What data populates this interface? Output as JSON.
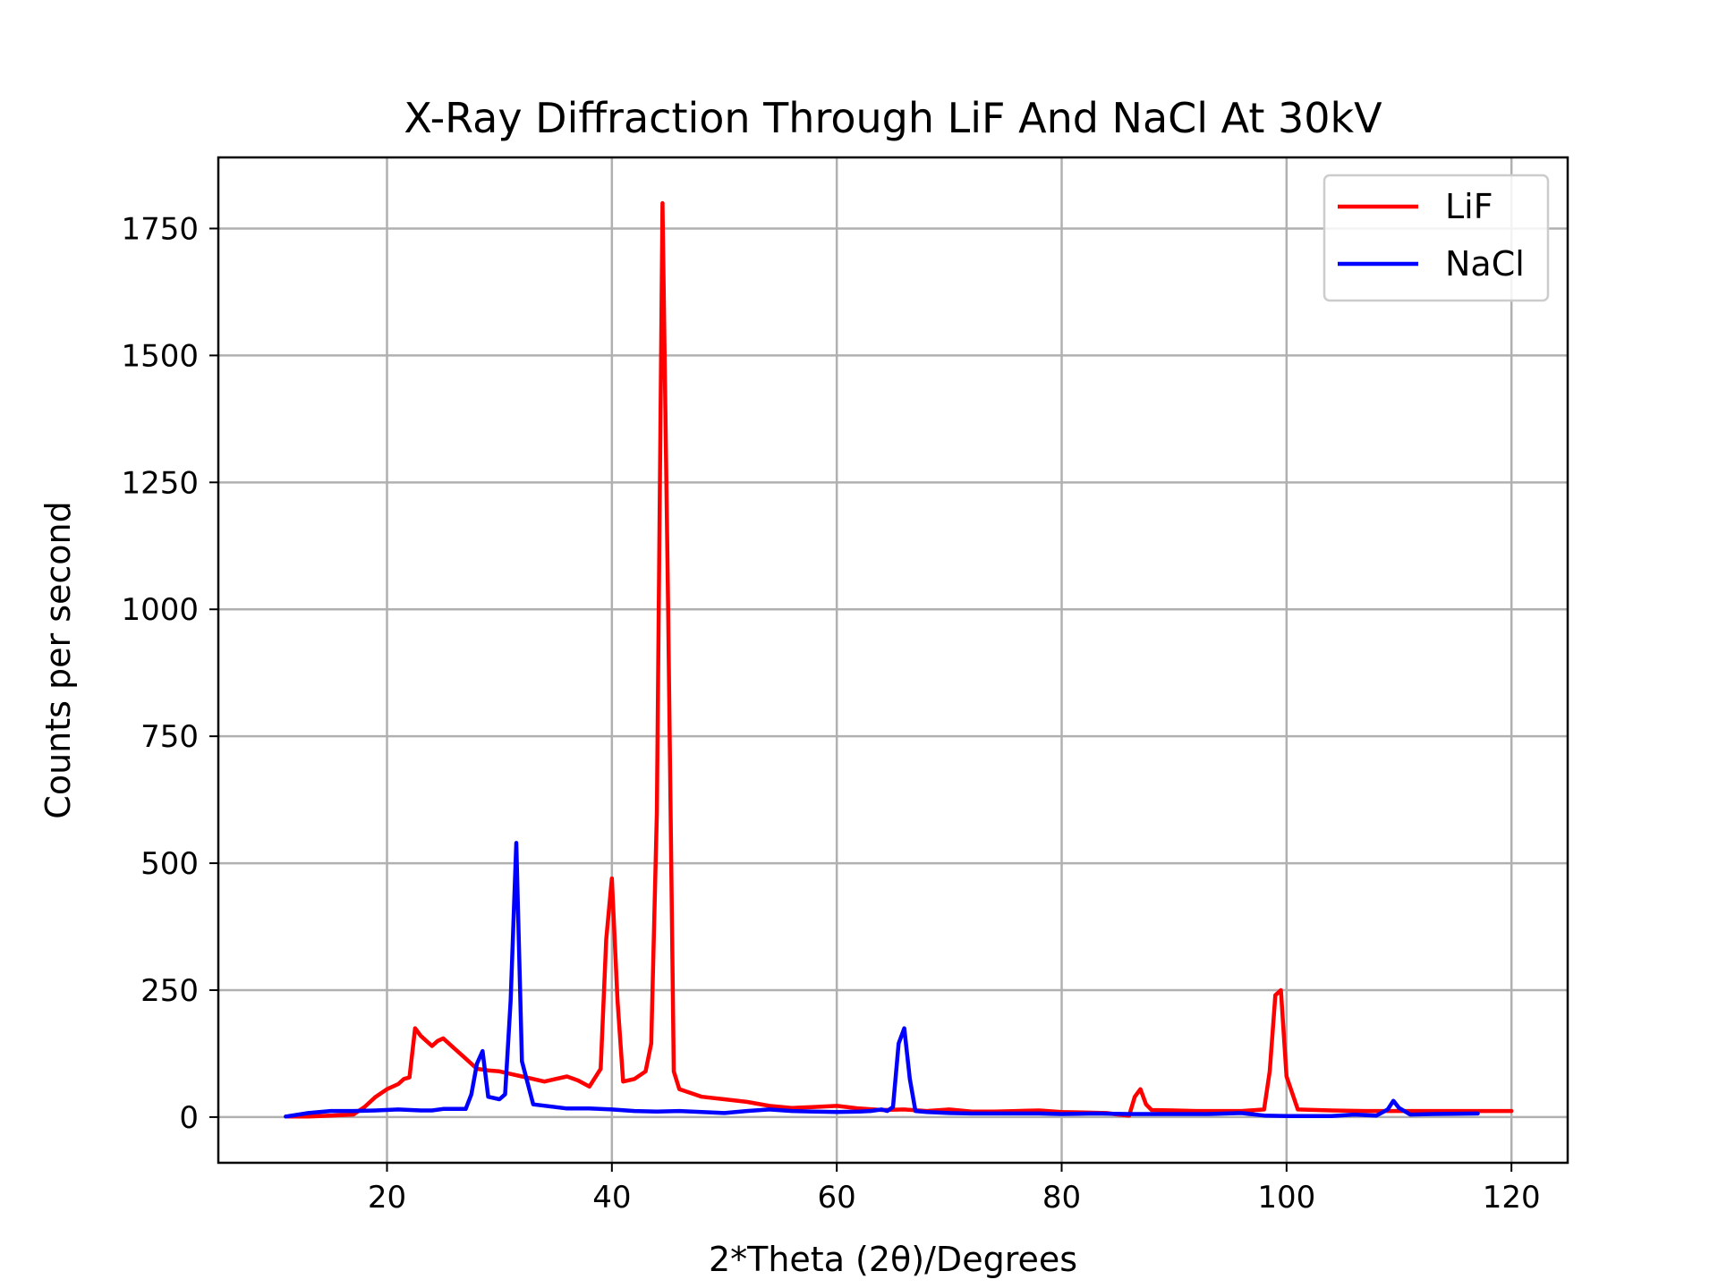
{
  "chart_data": {
    "type": "line",
    "title": "X-Ray Diffraction Through LiF And NaCl At 30kV",
    "xlabel": "2*Theta (2θ)/Degrees",
    "ylabel": "Counts per second",
    "xlim": [
      5,
      125
    ],
    "ylim": [
      -90,
      1890
    ],
    "xticks": [
      20,
      40,
      60,
      80,
      100,
      120
    ],
    "yticks": [
      0,
      250,
      500,
      750,
      1000,
      1250,
      1500,
      1750
    ],
    "grid": true,
    "legend_position": "top-right",
    "series": [
      {
        "name": "LiF",
        "color": "#ff0000",
        "x": [
          11,
          13,
          15,
          17,
          18,
          19,
          20,
          21,
          21.5,
          22,
          22.5,
          23,
          23.5,
          24,
          24.5,
          25,
          25.5,
          26,
          27,
          28,
          29,
          30,
          31,
          32,
          33,
          34,
          35,
          36,
          37,
          38,
          39,
          39.5,
          40,
          40.5,
          41,
          42,
          43,
          43.5,
          44,
          44.5,
          45,
          45.5,
          46,
          48,
          50,
          52,
          54,
          56,
          58,
          60,
          62,
          64,
          66,
          68,
          70,
          72,
          74,
          76,
          78,
          80,
          82,
          84,
          85,
          86,
          86.5,
          87,
          87.5,
          88,
          90,
          92,
          94,
          96,
          98,
          98.5,
          99,
          99.5,
          100,
          101,
          104,
          107,
          110,
          113,
          117,
          120
        ],
        "y": [
          1,
          1,
          3,
          5,
          20,
          40,
          55,
          65,
          75,
          78,
          175,
          160,
          150,
          140,
          150,
          155,
          145,
          135,
          115,
          95,
          92,
          90,
          85,
          80,
          75,
          70,
          75,
          80,
          72,
          60,
          95,
          350,
          470,
          230,
          70,
          75,
          90,
          145,
          600,
          1800,
          1000,
          90,
          55,
          40,
          35,
          30,
          22,
          18,
          20,
          22,
          17,
          14,
          15,
          12,
          15,
          11,
          11,
          12,
          13,
          10,
          9,
          8,
          5,
          3,
          40,
          55,
          25,
          14,
          13,
          12,
          12,
          12,
          15,
          90,
          240,
          250,
          80,
          15,
          13,
          12,
          12,
          12,
          12,
          12
        ]
      },
      {
        "name": "NaCl",
        "color": "#0000ff",
        "x": [
          11,
          13,
          15,
          17,
          19,
          21,
          23,
          24,
          25,
          27,
          27.5,
          28,
          28.5,
          29,
          30,
          30.5,
          31,
          31.5,
          32,
          33,
          36,
          38,
          40,
          42,
          44,
          46,
          48,
          50,
          52,
          54,
          56,
          58,
          60,
          62,
          63,
          64,
          64.5,
          65,
          65.5,
          66,
          66.5,
          67,
          68,
          70,
          72,
          75,
          78,
          80,
          83,
          86,
          90,
          93,
          96,
          98,
          100,
          102,
          104,
          106,
          108,
          109,
          109.5,
          110,
          111,
          113,
          117
        ],
        "y": [
          1,
          8,
          12,
          12,
          13,
          15,
          13,
          13,
          16,
          16,
          45,
          105,
          130,
          40,
          35,
          45,
          230,
          540,
          110,
          25,
          17,
          17,
          15,
          12,
          11,
          12,
          10,
          8,
          12,
          15,
          12,
          11,
          10,
          11,
          12,
          15,
          12,
          20,
          145,
          175,
          75,
          12,
          10,
          8,
          7,
          7,
          7,
          6,
          7,
          6,
          6,
          6,
          8,
          3,
          2,
          2,
          2,
          5,
          3,
          15,
          32,
          18,
          5,
          6,
          7
        ]
      }
    ]
  }
}
